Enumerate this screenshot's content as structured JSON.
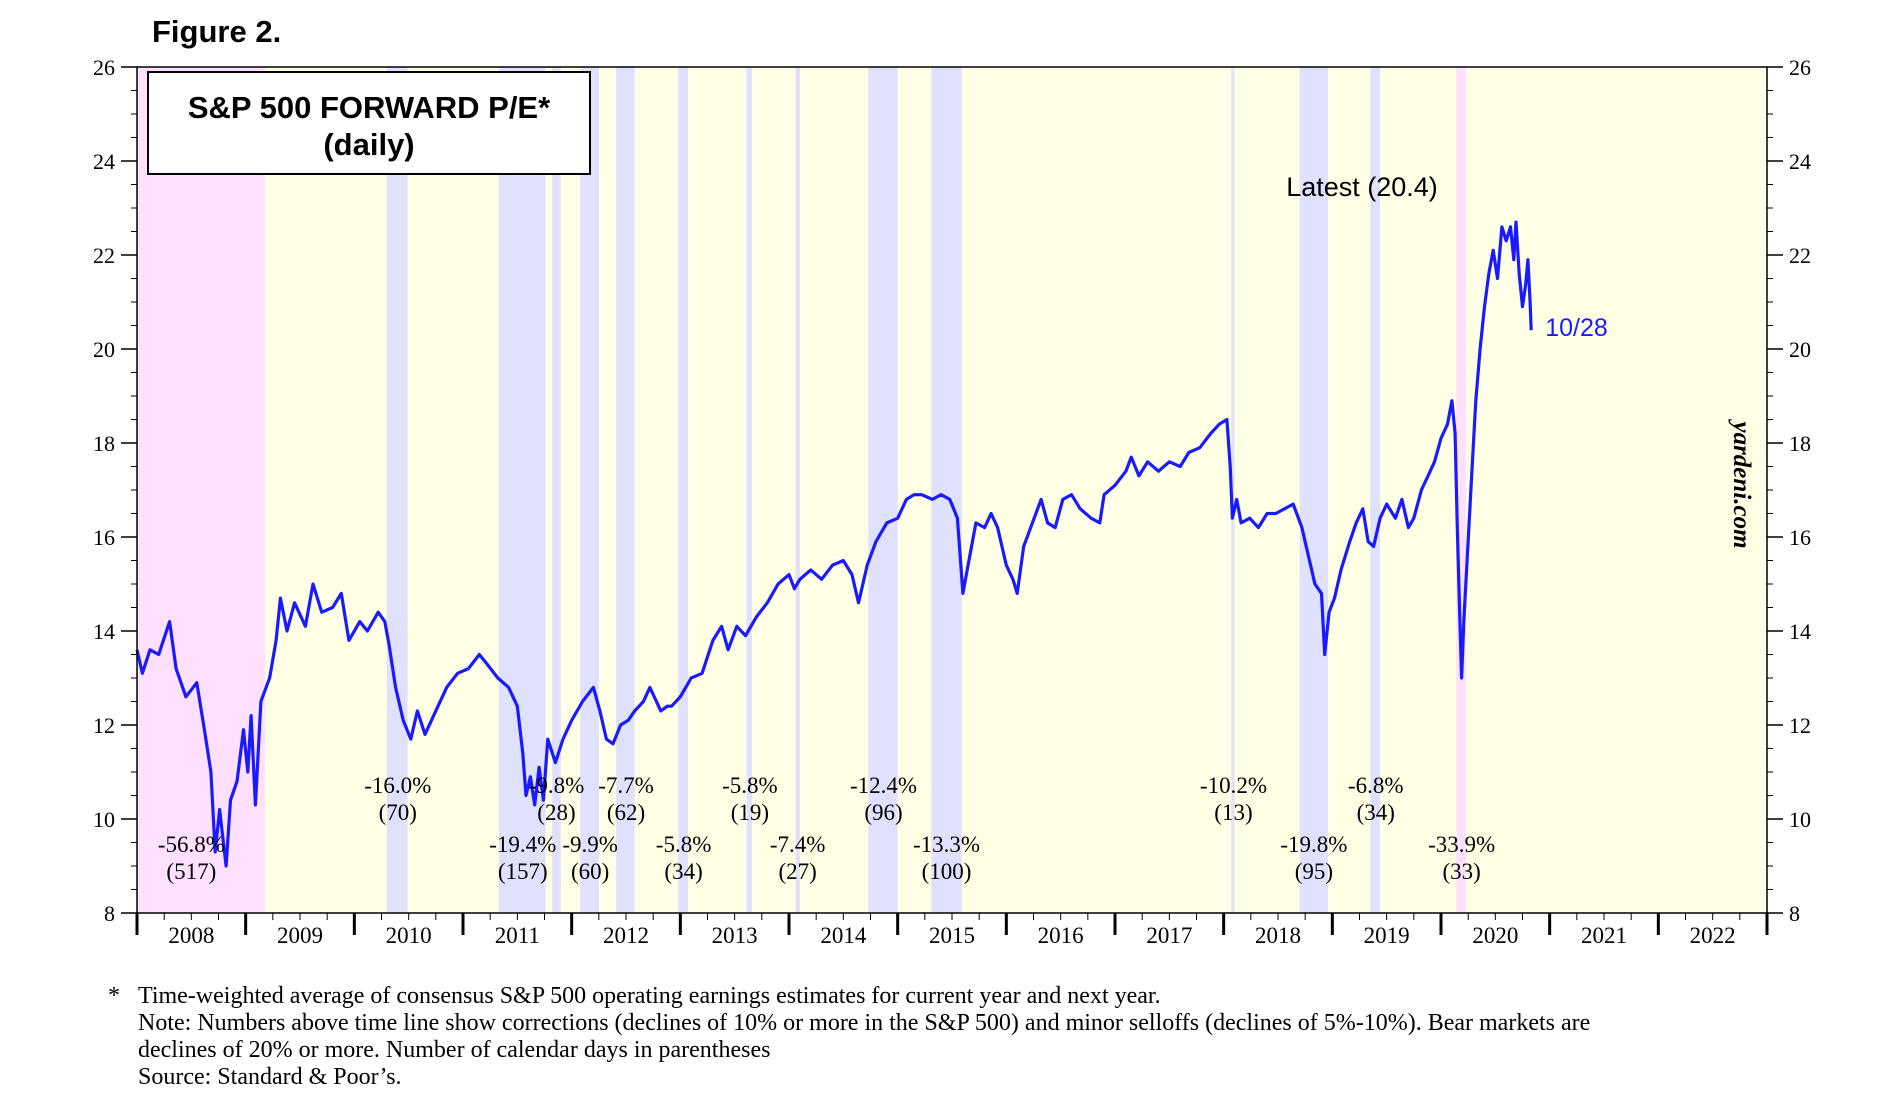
{
  "figure_label": "Figure 2.",
  "chart_data": {
    "type": "line",
    "title": "S&P 500 FORWARD P/E*",
    "subtitle": "(daily)",
    "xlabel": "",
    "ylabel": "",
    "xlim": [
      2008.0,
      2023.0
    ],
    "ylim": [
      8,
      26
    ],
    "yticks": [
      "8",
      "10",
      "12",
      "14",
      "16",
      "18",
      "20",
      "22",
      "24",
      "26"
    ],
    "x_tick_labels": [
      "2008",
      "2009",
      "2010",
      "2011",
      "2012",
      "2013",
      "2014",
      "2015",
      "2016",
      "2017",
      "2018",
      "2019",
      "2020",
      "2021",
      "2022"
    ],
    "series": [
      {
        "name": "S&P 500 Forward P/E",
        "color": "#1a1aff",
        "points": [
          [
            2008.0,
            13.6
          ],
          [
            2008.05,
            13.1
          ],
          [
            2008.12,
            13.6
          ],
          [
            2008.2,
            13.5
          ],
          [
            2008.3,
            14.2
          ],
          [
            2008.36,
            13.2
          ],
          [
            2008.45,
            12.6
          ],
          [
            2008.55,
            12.9
          ],
          [
            2008.62,
            11.9
          ],
          [
            2008.68,
            11.0
          ],
          [
            2008.72,
            9.3
          ],
          [
            2008.76,
            10.2
          ],
          [
            2008.82,
            9.0
          ],
          [
            2008.86,
            10.4
          ],
          [
            2008.92,
            10.8
          ],
          [
            2008.98,
            11.9
          ],
          [
            2009.02,
            11.0
          ],
          [
            2009.05,
            12.2
          ],
          [
            2009.09,
            10.3
          ],
          [
            2009.14,
            12.5
          ],
          [
            2009.22,
            13.0
          ],
          [
            2009.28,
            13.8
          ],
          [
            2009.32,
            14.7
          ],
          [
            2009.38,
            14.0
          ],
          [
            2009.45,
            14.6
          ],
          [
            2009.55,
            14.1
          ],
          [
            2009.62,
            15.0
          ],
          [
            2009.7,
            14.4
          ],
          [
            2009.8,
            14.5
          ],
          [
            2009.88,
            14.8
          ],
          [
            2009.95,
            13.8
          ],
          [
            2010.05,
            14.2
          ],
          [
            2010.12,
            14.0
          ],
          [
            2010.22,
            14.4
          ],
          [
            2010.28,
            14.2
          ],
          [
            2010.32,
            13.7
          ],
          [
            2010.38,
            12.8
          ],
          [
            2010.45,
            12.1
          ],
          [
            2010.52,
            11.7
          ],
          [
            2010.58,
            12.3
          ],
          [
            2010.65,
            11.8
          ],
          [
            2010.75,
            12.3
          ],
          [
            2010.85,
            12.8
          ],
          [
            2010.95,
            13.1
          ],
          [
            2011.05,
            13.2
          ],
          [
            2011.15,
            13.5
          ],
          [
            2011.22,
            13.3
          ],
          [
            2011.32,
            13.0
          ],
          [
            2011.42,
            12.8
          ],
          [
            2011.5,
            12.4
          ],
          [
            2011.55,
            11.4
          ],
          [
            2011.58,
            10.5
          ],
          [
            2011.62,
            10.9
          ],
          [
            2011.66,
            10.3
          ],
          [
            2011.7,
            11.1
          ],
          [
            2011.74,
            10.4
          ],
          [
            2011.78,
            11.7
          ],
          [
            2011.85,
            11.2
          ],
          [
            2011.92,
            11.7
          ],
          [
            2012.0,
            12.1
          ],
          [
            2012.1,
            12.5
          ],
          [
            2012.2,
            12.8
          ],
          [
            2012.26,
            12.3
          ],
          [
            2012.32,
            11.7
          ],
          [
            2012.38,
            11.6
          ],
          [
            2012.45,
            12.0
          ],
          [
            2012.52,
            12.1
          ],
          [
            2012.58,
            12.3
          ],
          [
            2012.66,
            12.5
          ],
          [
            2012.72,
            12.8
          ],
          [
            2012.82,
            12.3
          ],
          [
            2012.88,
            12.4
          ],
          [
            2012.92,
            12.4
          ],
          [
            2013.0,
            12.6
          ],
          [
            2013.1,
            13.0
          ],
          [
            2013.2,
            13.1
          ],
          [
            2013.3,
            13.8
          ],
          [
            2013.38,
            14.1
          ],
          [
            2013.44,
            13.6
          ],
          [
            2013.52,
            14.1
          ],
          [
            2013.6,
            13.9
          ],
          [
            2013.7,
            14.3
          ],
          [
            2013.8,
            14.6
          ],
          [
            2013.9,
            15.0
          ],
          [
            2014.0,
            15.2
          ],
          [
            2014.05,
            14.9
          ],
          [
            2014.1,
            15.1
          ],
          [
            2014.2,
            15.3
          ],
          [
            2014.3,
            15.1
          ],
          [
            2014.4,
            15.4
          ],
          [
            2014.5,
            15.5
          ],
          [
            2014.58,
            15.2
          ],
          [
            2014.64,
            14.6
          ],
          [
            2014.68,
            15.0
          ],
          [
            2014.72,
            15.4
          ],
          [
            2014.8,
            15.9
          ],
          [
            2014.9,
            16.3
          ],
          [
            2015.0,
            16.4
          ],
          [
            2015.08,
            16.8
          ],
          [
            2015.15,
            16.9
          ],
          [
            2015.22,
            16.9
          ],
          [
            2015.32,
            16.8
          ],
          [
            2015.4,
            16.9
          ],
          [
            2015.48,
            16.8
          ],
          [
            2015.55,
            16.4
          ],
          [
            2015.6,
            14.8
          ],
          [
            2015.64,
            15.3
          ],
          [
            2015.72,
            16.3
          ],
          [
            2015.8,
            16.2
          ],
          [
            2015.86,
            16.5
          ],
          [
            2015.92,
            16.2
          ],
          [
            2016.0,
            15.4
          ],
          [
            2016.06,
            15.1
          ],
          [
            2016.1,
            14.8
          ],
          [
            2016.16,
            15.8
          ],
          [
            2016.24,
            16.3
          ],
          [
            2016.32,
            16.8
          ],
          [
            2016.38,
            16.3
          ],
          [
            2016.45,
            16.2
          ],
          [
            2016.52,
            16.8
          ],
          [
            2016.6,
            16.9
          ],
          [
            2016.68,
            16.6
          ],
          [
            2016.78,
            16.4
          ],
          [
            2016.86,
            16.3
          ],
          [
            2016.9,
            16.9
          ],
          [
            2017.0,
            17.1
          ],
          [
            2017.1,
            17.4
          ],
          [
            2017.15,
            17.7
          ],
          [
            2017.22,
            17.3
          ],
          [
            2017.3,
            17.6
          ],
          [
            2017.4,
            17.4
          ],
          [
            2017.5,
            17.6
          ],
          [
            2017.6,
            17.5
          ],
          [
            2017.68,
            17.8
          ],
          [
            2017.78,
            17.9
          ],
          [
            2017.88,
            18.2
          ],
          [
            2017.96,
            18.4
          ],
          [
            2018.03,
            18.5
          ],
          [
            2018.06,
            17.5
          ],
          [
            2018.08,
            16.4
          ],
          [
            2018.12,
            16.8
          ],
          [
            2018.16,
            16.3
          ],
          [
            2018.24,
            16.4
          ],
          [
            2018.32,
            16.2
          ],
          [
            2018.4,
            16.5
          ],
          [
            2018.48,
            16.5
          ],
          [
            2018.56,
            16.6
          ],
          [
            2018.64,
            16.7
          ],
          [
            2018.72,
            16.2
          ],
          [
            2018.78,
            15.6
          ],
          [
            2018.84,
            15.0
          ],
          [
            2018.9,
            14.8
          ],
          [
            2018.93,
            13.5
          ],
          [
            2018.97,
            14.4
          ],
          [
            2019.02,
            14.7
          ],
          [
            2019.08,
            15.3
          ],
          [
            2019.16,
            15.9
          ],
          [
            2019.22,
            16.3
          ],
          [
            2019.28,
            16.6
          ],
          [
            2019.33,
            15.9
          ],
          [
            2019.38,
            15.8
          ],
          [
            2019.44,
            16.4
          ],
          [
            2019.5,
            16.7
          ],
          [
            2019.58,
            16.4
          ],
          [
            2019.64,
            16.8
          ],
          [
            2019.7,
            16.2
          ],
          [
            2019.75,
            16.4
          ],
          [
            2019.82,
            17.0
          ],
          [
            2019.88,
            17.3
          ],
          [
            2019.94,
            17.6
          ],
          [
            2020.0,
            18.1
          ],
          [
            2020.06,
            18.4
          ],
          [
            2020.1,
            18.9
          ],
          [
            2020.13,
            18.2
          ],
          [
            2020.15,
            16.2
          ],
          [
            2020.17,
            14.5
          ],
          [
            2020.19,
            13.0
          ],
          [
            2020.21,
            14.2
          ],
          [
            2020.24,
            15.5
          ],
          [
            2020.28,
            17.2
          ],
          [
            2020.32,
            18.9
          ],
          [
            2020.36,
            20.0
          ],
          [
            2020.4,
            20.9
          ],
          [
            2020.44,
            21.6
          ],
          [
            2020.48,
            22.1
          ],
          [
            2020.52,
            21.5
          ],
          [
            2020.56,
            22.6
          ],
          [
            2020.6,
            22.3
          ],
          [
            2020.64,
            22.6
          ],
          [
            2020.67,
            21.9
          ],
          [
            2020.69,
            22.7
          ],
          [
            2020.72,
            21.6
          ],
          [
            2020.75,
            20.9
          ],
          [
            2020.78,
            21.4
          ],
          [
            2020.8,
            21.9
          ],
          [
            2020.82,
            21.0
          ],
          [
            2020.83,
            20.4
          ]
        ]
      }
    ],
    "shaded_periods": [
      {
        "type": "bear",
        "start": 2008.0,
        "end": 2009.18
      },
      {
        "type": "bear",
        "start": 2020.14,
        "end": 2020.23
      },
      {
        "type": "correction",
        "start": 2010.3,
        "end": 2010.49
      },
      {
        "type": "correction",
        "start": 2011.33,
        "end": 2011.76
      },
      {
        "type": "correction",
        "start": 2011.82,
        "end": 2011.9
      },
      {
        "type": "correction",
        "start": 2012.08,
        "end": 2012.25
      },
      {
        "type": "correction",
        "start": 2012.41,
        "end": 2012.58
      },
      {
        "type": "correction",
        "start": 2012.98,
        "end": 2013.07
      },
      {
        "type": "correction",
        "start": 2013.61,
        "end": 2013.66
      },
      {
        "type": "correction",
        "start": 2014.06,
        "end": 2014.1
      },
      {
        "type": "correction",
        "start": 2014.73,
        "end": 2015.0
      },
      {
        "type": "correction",
        "start": 2015.31,
        "end": 2015.59
      },
      {
        "type": "correction",
        "start": 2018.07,
        "end": 2018.1
      },
      {
        "type": "correction",
        "start": 2018.7,
        "end": 2018.96
      },
      {
        "type": "correction",
        "start": 2019.35,
        "end": 2019.44
      }
    ],
    "annotations": [
      {
        "pct": "-56.8%",
        "days": "(517)",
        "x": 2008.5,
        "row": "low"
      },
      {
        "pct": "-16.0%",
        "days": "(70)",
        "x": 2010.4,
        "row": "high"
      },
      {
        "pct": "-19.4%",
        "days": "(157)",
        "x": 2011.55,
        "row": "low"
      },
      {
        "pct": "-9.8%",
        "days": "(28)",
        "x": 2011.86,
        "row": "high"
      },
      {
        "pct": "-9.9%",
        "days": "(60)",
        "x": 2012.17,
        "row": "low"
      },
      {
        "pct": "-7.7%",
        "days": "(62)",
        "x": 2012.5,
        "row": "high"
      },
      {
        "pct": "-5.8%",
        "days": "(34)",
        "x": 2013.03,
        "row": "low"
      },
      {
        "pct": "-5.8%",
        "days": "(19)",
        "x": 2013.64,
        "row": "high"
      },
      {
        "pct": "-7.4%",
        "days": "(27)",
        "x": 2014.08,
        "row": "low"
      },
      {
        "pct": "-12.4%",
        "days": "(96)",
        "x": 2014.87,
        "row": "high"
      },
      {
        "pct": "-13.3%",
        "days": "(100)",
        "x": 2015.45,
        "row": "low"
      },
      {
        "pct": "-10.2%",
        "days": "(13)",
        "x": 2018.09,
        "row": "high"
      },
      {
        "pct": "-19.8%",
        "days": "(95)",
        "x": 2018.83,
        "row": "low"
      },
      {
        "pct": "-6.8%",
        "days": "(34)",
        "x": 2019.4,
        "row": "high"
      },
      {
        "pct": "-33.9%",
        "days": "(33)",
        "x": 2020.19,
        "row": "low"
      }
    ],
    "latest_label": "Latest (20.4)",
    "last_date_label": "10/28",
    "watermark": "yardeni.com",
    "colors": {
      "background": "#ffffe5",
      "bear_shade": "#ffe0ff",
      "correction_shade": "#e0e0ff",
      "line": "#1a1aff"
    }
  },
  "footnotes": {
    "marker": "*",
    "lines": [
      "Time-weighted average of consensus S&P 500 operating earnings estimates for current year and next year.",
      "Note: Numbers above time line show corrections (declines of 10% or more in the S&P 500) and minor selloffs (declines of 5%-10%). Bear markets are",
      "declines of 20% or more. Number of calendar days in parentheses",
      "Source: Standard & Poor’s."
    ]
  }
}
